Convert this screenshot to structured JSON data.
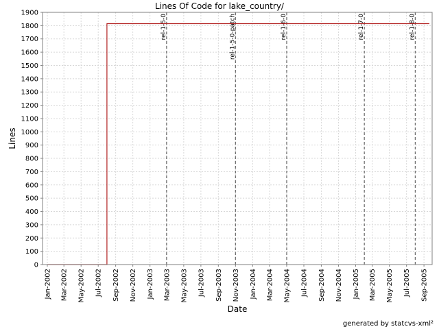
{
  "chart_data": {
    "type": "line",
    "title": "Lines Of Code for lake_country/",
    "xlabel": "Date",
    "ylabel": "Lines",
    "footer": "generated by statcvs-xml²",
    "ylim": [
      0,
      1900
    ],
    "y_ticks": [
      0,
      100,
      200,
      300,
      400,
      500,
      600,
      700,
      800,
      900,
      1000,
      1100,
      1200,
      1300,
      1400,
      1500,
      1600,
      1700,
      1800,
      1900
    ],
    "xlim": [
      "2001-12-15",
      "2005-09-30"
    ],
    "x_ticks": [
      {
        "date": "2002-01-01",
        "label": "Jan-2002"
      },
      {
        "date": "2002-03-01",
        "label": "Mar-2002"
      },
      {
        "date": "2002-05-01",
        "label": "May-2002"
      },
      {
        "date": "2002-07-01",
        "label": "Jul-2002"
      },
      {
        "date": "2002-09-01",
        "label": "Sep-2002"
      },
      {
        "date": "2002-11-01",
        "label": "Nov-2002"
      },
      {
        "date": "2003-01-01",
        "label": "Jan-2003"
      },
      {
        "date": "2003-03-01",
        "label": "Mar-2003"
      },
      {
        "date": "2003-05-01",
        "label": "May-2003"
      },
      {
        "date": "2003-07-01",
        "label": "Jul-2003"
      },
      {
        "date": "2003-09-01",
        "label": "Sep-2003"
      },
      {
        "date": "2003-11-01",
        "label": "Nov-2003"
      },
      {
        "date": "2004-01-01",
        "label": "Jan-2004"
      },
      {
        "date": "2004-03-01",
        "label": "Mar-2004"
      },
      {
        "date": "2004-05-01",
        "label": "May-2004"
      },
      {
        "date": "2004-07-01",
        "label": "Jul-2004"
      },
      {
        "date": "2004-09-01",
        "label": "Sep-2004"
      },
      {
        "date": "2004-11-01",
        "label": "Nov-2004"
      },
      {
        "date": "2005-01-01",
        "label": "Jan-2005"
      },
      {
        "date": "2005-03-01",
        "label": "Mar-2005"
      },
      {
        "date": "2005-05-01",
        "label": "May-2005"
      },
      {
        "date": "2005-07-01",
        "label": "Jul-2005"
      },
      {
        "date": "2005-09-01",
        "label": "Sep-2005"
      }
    ],
    "series": [
      {
        "color": "#b22222",
        "step": true,
        "points": [
          {
            "x": "2002-01-01",
            "y": 0
          },
          {
            "x": "2002-08-01",
            "y": 0
          },
          {
            "x": "2002-08-01",
            "y": 1815
          },
          {
            "x": "2005-09-20",
            "y": 1815
          }
        ]
      }
    ],
    "markers": [
      {
        "date": "2003-03-01",
        "label": "rel-1-5-0"
      },
      {
        "date": "2003-11-01",
        "label": "rel-1-5-0-patch"
      },
      {
        "date": "2004-05-01",
        "label": "rel-1-6-0"
      },
      {
        "date": "2005-02-01",
        "label": "rel-1-7-0"
      },
      {
        "date": "2005-08-01",
        "label": "rel-1-8-0"
      }
    ],
    "grid": true
  }
}
